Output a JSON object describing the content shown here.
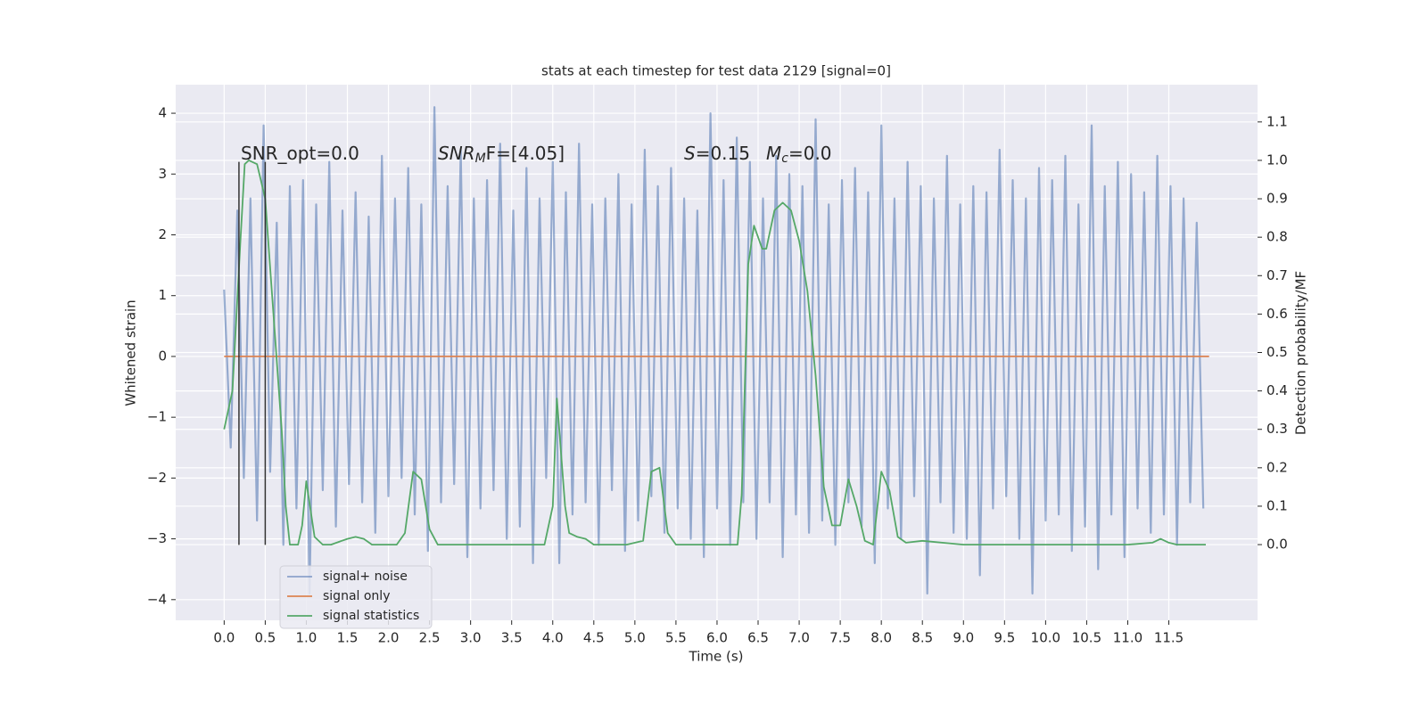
{
  "chart_data": {
    "type": "line",
    "title": "stats at each timestep for test data 2129 [signal=0]",
    "xlabel": "Time (s)",
    "ylabel": "Whitened strain",
    "y2label": "Detection probability/MF",
    "xlim": [
      -0.59,
      12.58
    ],
    "ylim": [
      -4.34,
      4.47
    ],
    "y2lim": [
      -0.197,
      1.197
    ],
    "xticks": [
      {
        "value": 0,
        "label": "0.0"
      },
      0.5,
      {
        "value": 1,
        "label": "1.0"
      },
      1.5,
      {
        "value": 2,
        "label": "2.0"
      },
      2.5,
      {
        "value": 3,
        "label": "3.0"
      },
      3.5,
      {
        "value": 4,
        "label": "4.0"
      },
      4.5,
      {
        "value": 5,
        "label": "5.0"
      },
      5.5,
      {
        "value": 6,
        "label": "6.0"
      },
      6.5,
      {
        "value": 7,
        "label": "7.0"
      },
      7.5,
      {
        "value": 8,
        "label": "8.0"
      },
      8.5,
      {
        "value": 9,
        "label": "9.0"
      },
      9.5,
      {
        "value": 10,
        "label": "10.0"
      },
      10.5,
      {
        "value": 11,
        "label": "11.0"
      },
      11.5
    ],
    "yticks": [
      {
        "value": -4,
        "label": "−4"
      },
      {
        "value": -3,
        "label": "−3"
      },
      {
        "value": -2,
        "label": "−2"
      },
      {
        "value": -1,
        "label": "−1"
      },
      0,
      1,
      2,
      3,
      4
    ],
    "y2ticks": [
      {
        "value": 0,
        "label": "0.0"
      },
      0.1,
      0.2,
      0.3,
      0.4,
      0.5,
      0.6,
      0.7,
      0.8,
      0.9,
      {
        "value": 1,
        "label": "1.0"
      },
      1.1
    ],
    "grid": true,
    "legend": "lower left",
    "vlines": {
      "x": [
        0.18,
        0.5
      ],
      "ymin": -3.1,
      "ymax": 3.2,
      "color": "#333333"
    },
    "annotations": [
      {
        "text": "SNR_opt=0.0"
      },
      {
        "base": "SNR",
        "sub": "M",
        "rest": "F=[4.05]"
      },
      {
        "base": "S",
        "rest": "=0.15"
      },
      {
        "base": "M",
        "sub": "c",
        "rest": "=0.0"
      }
    ],
    "series": [
      {
        "name": "signal+ noise",
        "color": "#4c72b0",
        "axis": "y",
        "x": [
          0,
          0.08,
          0.16,
          0.24,
          0.32,
          0.4,
          0.48,
          0.56,
          0.64,
          0.72,
          0.8,
          0.88,
          0.96,
          1.04,
          1.12,
          1.2,
          1.28,
          1.36,
          1.44,
          1.52,
          1.6,
          1.68,
          1.76,
          1.84,
          1.92,
          2,
          2.08,
          2.16,
          2.24,
          2.32,
          2.4,
          2.48,
          2.56,
          2.64,
          2.72,
          2.8,
          2.88,
          2.96,
          3.04,
          3.12,
          3.2,
          3.28,
          3.36,
          3.44,
          3.52,
          3.6,
          3.68,
          3.76,
          3.84,
          3.92,
          4,
          4.08,
          4.16,
          4.24,
          4.32,
          4.4,
          4.48,
          4.56,
          4.64,
          4.72,
          4.8,
          4.88,
          4.96,
          5.04,
          5.12,
          5.2,
          5.28,
          5.36,
          5.44,
          5.52,
          5.6,
          5.68,
          5.76,
          5.84,
          5.92,
          6,
          6.08,
          6.16,
          6.24,
          6.32,
          6.4,
          6.48,
          6.56,
          6.64,
          6.72,
          6.8,
          6.88,
          6.96,
          7.04,
          7.12,
          7.2,
          7.28,
          7.36,
          7.44,
          7.52,
          7.6,
          7.68,
          7.76,
          7.84,
          7.92,
          8,
          8.08,
          8.16,
          8.24,
          8.32,
          8.4,
          8.48,
          8.56,
          8.64,
          8.72,
          8.8,
          8.88,
          8.96,
          9.04,
          9.12,
          9.2,
          9.28,
          9.36,
          9.44,
          9.52,
          9.6,
          9.68,
          9.76,
          9.84,
          9.92,
          10,
          10.08,
          10.16,
          10.24,
          10.32,
          10.4,
          10.48,
          10.56,
          10.64,
          10.72,
          10.8,
          10.88,
          10.96,
          11.04,
          11.12,
          11.2,
          11.28,
          11.36,
          11.44,
          11.52,
          11.6,
          11.68,
          11.76,
          11.84,
          11.92
        ],
        "values": [
          1.1,
          -1.5,
          2.4,
          -2.0,
          2.6,
          -2.7,
          3.8,
          -1.9,
          2.2,
          -3.1,
          2.8,
          -2.5,
          2.9,
          -3.9,
          2.5,
          -2.2,
          3.2,
          -2.8,
          2.4,
          -2.1,
          2.7,
          -2.4,
          2.3,
          -2.9,
          3.3,
          -2.3,
          2.6,
          -2.0,
          3.1,
          -2.6,
          2.5,
          -3.2,
          4.1,
          -2.4,
          2.8,
          -2.1,
          3.4,
          -3.3,
          2.6,
          -2.5,
          2.9,
          -2.2,
          3.5,
          -3.0,
          2.4,
          -2.8,
          3.1,
          -3.4,
          2.6,
          -2.0,
          3.2,
          -3.4,
          2.7,
          -2.6,
          3.5,
          -2.4,
          2.5,
          -3.1,
          2.6,
          -2.2,
          3.0,
          -3.2,
          2.5,
          -2.7,
          3.4,
          -2.3,
          2.8,
          -2.9,
          3.1,
          -2.5,
          2.6,
          -3.0,
          2.4,
          -3.3,
          4.0,
          -2.5,
          2.9,
          -3.1,
          3.6,
          -2.4,
          3.2,
          -3.0,
          2.6,
          -2.4,
          3.3,
          -3.3,
          3.0,
          -2.6,
          2.8,
          -2.9,
          3.9,
          -2.7,
          2.5,
          -3.1,
          2.9,
          -2.4,
          3.1,
          -2.8,
          2.7,
          -3.4,
          3.8,
          -2.5,
          2.6,
          -3.0,
          3.2,
          -2.3,
          2.8,
          -3.9,
          2.6,
          -2.4,
          3.3,
          -2.9,
          2.5,
          -3.0,
          2.8,
          -3.6,
          2.7,
          -2.5,
          3.4,
          -2.3,
          2.9,
          -3.0,
          2.6,
          -3.9,
          3.1,
          -2.7,
          2.9,
          -2.6,
          3.3,
          -3.2,
          2.5,
          -2.8,
          3.8,
          -3.5,
          2.8,
          -2.6,
          3.2,
          -3.3,
          3.0,
          -2.5,
          2.7,
          -2.9,
          3.3,
          -2.6,
          2.8,
          -3.1,
          2.6,
          -2.4,
          2.2,
          -2.5
        ]
      },
      {
        "name": "signal only",
        "color": "#dd8452",
        "axis": "y",
        "x": [
          0,
          11.99
        ],
        "values": [
          0,
          0
        ]
      },
      {
        "name": "signal statistics",
        "color": "#55a868",
        "axis": "y2",
        "x": [
          0,
          0.1,
          0.2,
          0.25,
          0.3,
          0.4,
          0.5,
          0.6,
          0.7,
          0.75,
          0.8,
          0.9,
          0.95,
          1.0,
          1.1,
          1.2,
          1.3,
          1.5,
          1.6,
          1.7,
          1.8,
          2.0,
          2.1,
          2.2,
          2.3,
          2.4,
          2.5,
          2.6,
          3.0,
          3.5,
          3.9,
          4.0,
          4.05,
          4.15,
          4.2,
          4.3,
          4.4,
          4.5,
          4.9,
          5.1,
          5.2,
          5.3,
          5.4,
          5.5,
          6.0,
          6.25,
          6.3,
          6.38,
          6.45,
          6.55,
          6.6,
          6.7,
          6.8,
          6.9,
          7.0,
          7.1,
          7.2,
          7.3,
          7.4,
          7.5,
          7.6,
          7.7,
          7.8,
          7.9,
          8.0,
          8.1,
          8.2,
          8.3,
          8.5,
          9.0,
          10.0,
          11.0,
          11.3,
          11.4,
          11.5,
          11.6,
          11.95
        ],
        "values": [
          0.3,
          0.4,
          0.8,
          0.99,
          1.0,
          0.99,
          0.9,
          0.6,
          0.3,
          0.1,
          0.0,
          0.0,
          0.05,
          0.165,
          0.02,
          0.0,
          0.0,
          0.015,
          0.02,
          0.015,
          0.0,
          0.0,
          0.0,
          0.03,
          0.19,
          0.17,
          0.04,
          0.0,
          0.0,
          0.0,
          0.0,
          0.1,
          0.38,
          0.1,
          0.03,
          0.02,
          0.015,
          0.0,
          0.0,
          0.01,
          0.19,
          0.2,
          0.03,
          0.0,
          0.0,
          0.0,
          0.13,
          0.73,
          0.83,
          0.77,
          0.77,
          0.87,
          0.89,
          0.87,
          0.79,
          0.66,
          0.44,
          0.15,
          0.05,
          0.05,
          0.17,
          0.1,
          0.01,
          0.0,
          0.19,
          0.14,
          0.02,
          0.005,
          0.01,
          0.0,
          0.0,
          0.0,
          0.005,
          0.015,
          0.005,
          0.0,
          0.0
        ]
      }
    ]
  }
}
